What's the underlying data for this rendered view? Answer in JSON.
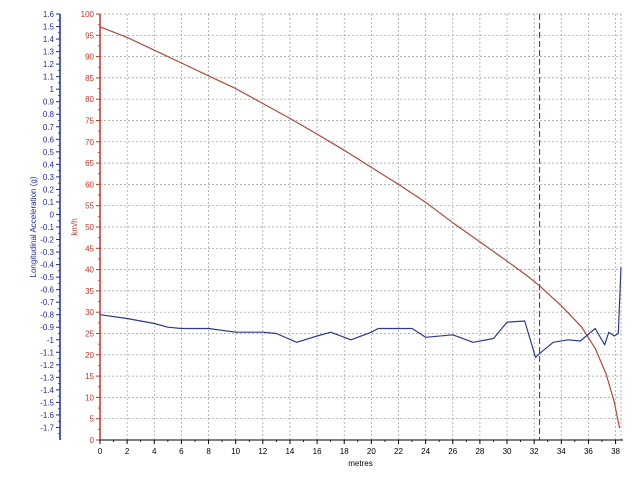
{
  "chart_data": {
    "type": "line",
    "x_axis": {
      "label": "metres",
      "range": [
        0,
        38.4
      ],
      "ticks": [
        0,
        2,
        4,
        6,
        8,
        10,
        12,
        14,
        16,
        18,
        20,
        22,
        24,
        26,
        28,
        30,
        32,
        34,
        36,
        38
      ],
      "grid": true,
      "color": "#000000"
    },
    "y_axis_left": {
      "label": "Longitudinal Acceleration (g)",
      "range": [
        -1.8,
        1.6
      ],
      "ticks": [
        1.6,
        1.5,
        1.4,
        1.3,
        1.2,
        1.1,
        1,
        0.9,
        0.8,
        0.7,
        0.6,
        0.5,
        0.4,
        0.3,
        0.2,
        0.1,
        0,
        -0.1,
        -0.2,
        -0.3,
        -0.4,
        -0.5,
        -0.6,
        -0.7,
        -0.8,
        -0.9,
        -1,
        -1.1,
        -1.2,
        -1.3,
        -1.4,
        -1.5,
        -1.6,
        -1.7
      ],
      "color": "#1f2c9e"
    },
    "y_axis_right": {
      "label": "km/h",
      "range": [
        0,
        100
      ],
      "ticks": [
        0,
        5,
        10,
        15,
        20,
        25,
        30,
        35,
        40,
        45,
        50,
        55,
        60,
        65,
        70,
        75,
        80,
        85,
        90,
        95,
        100
      ],
      "grid": true,
      "color": "#c0392b"
    },
    "cursor_x": 32.4,
    "series": [
      {
        "axis": "right",
        "color": "#b5473a",
        "points": [
          [
            0,
            97
          ],
          [
            2,
            94.5
          ],
          [
            4,
            91.5
          ],
          [
            6,
            88.5
          ],
          [
            8,
            85.5
          ],
          [
            10,
            82.5
          ],
          [
            12,
            79
          ],
          [
            14,
            75.5
          ],
          [
            16,
            71.8
          ],
          [
            18,
            68
          ],
          [
            20,
            64
          ],
          [
            22,
            60
          ],
          [
            24,
            55.8
          ],
          [
            26,
            51
          ],
          [
            28,
            46.5
          ],
          [
            30,
            42
          ],
          [
            31.5,
            38.5
          ],
          [
            32.4,
            36.2
          ],
          [
            34,
            31.5
          ],
          [
            35.5,
            26.5
          ],
          [
            36.5,
            21.5
          ],
          [
            37.3,
            15.5
          ],
          [
            37.9,
            9
          ],
          [
            38.3,
            2.8
          ]
        ]
      },
      {
        "axis": "left",
        "color": "#2d3a8c",
        "points": [
          [
            0,
            -0.8
          ],
          [
            2,
            -0.83
          ],
          [
            4,
            -0.87
          ],
          [
            5,
            -0.9
          ],
          [
            6,
            -0.91
          ],
          [
            8,
            -0.91
          ],
          [
            10,
            -0.94
          ],
          [
            12,
            -0.94
          ],
          [
            13,
            -0.95
          ],
          [
            14.5,
            -1.02
          ],
          [
            16,
            -0.97
          ],
          [
            17,
            -0.94
          ],
          [
            18.5,
            -1.0
          ],
          [
            20,
            -0.94
          ],
          [
            20.5,
            -0.91
          ],
          [
            22,
            -0.91
          ],
          [
            23,
            -0.91
          ],
          [
            24,
            -0.98
          ],
          [
            26,
            -0.96
          ],
          [
            27.5,
            -1.02
          ],
          [
            29,
            -0.99
          ],
          [
            30,
            -0.86
          ],
          [
            31.3,
            -0.85
          ],
          [
            32.1,
            -1.14
          ],
          [
            32.5,
            -1.1
          ],
          [
            33.4,
            -1.02
          ],
          [
            34.5,
            -1.0
          ],
          [
            35.4,
            -1.01
          ],
          [
            36.5,
            -0.91
          ],
          [
            37.2,
            -1.04
          ],
          [
            37.5,
            -0.94
          ],
          [
            37.9,
            -0.97
          ],
          [
            38.2,
            -0.95
          ],
          [
            38.4,
            -0.42
          ]
        ]
      }
    ]
  }
}
